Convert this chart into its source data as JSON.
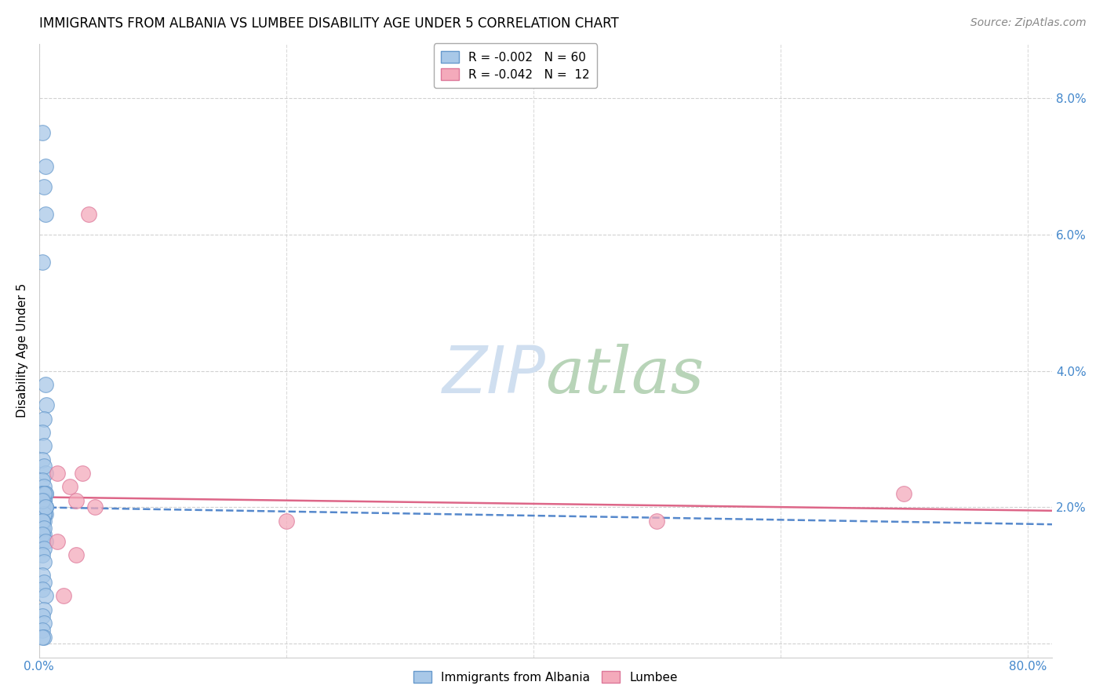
{
  "title": "IMMIGRANTS FROM ALBANIA VS LUMBEE DISABILITY AGE UNDER 5 CORRELATION CHART",
  "source": "Source: ZipAtlas.com",
  "ylabel": "Disability Age Under 5",
  "xlim": [
    0.0,
    0.82
  ],
  "ylim": [
    -0.002,
    0.088
  ],
  "yticks": [
    0.0,
    0.02,
    0.04,
    0.06,
    0.08
  ],
  "ytick_labels": [
    "",
    "2.0%",
    "4.0%",
    "6.0%",
    "8.0%"
  ],
  "xtick_left_val": 0.0,
  "xtick_right_val": 0.8,
  "xtick_left_label": "0.0%",
  "xtick_right_label": "80.0%",
  "legend_r1": "R = -0.002",
  "legend_n1": "N = 60",
  "legend_r2": "R = -0.042",
  "legend_n2": "N =  12",
  "albania_scatter_x": [
    0.003,
    0.005,
    0.004,
    0.005,
    0.003,
    0.005,
    0.006,
    0.004,
    0.003,
    0.004,
    0.003,
    0.005,
    0.004,
    0.003,
    0.004,
    0.003,
    0.004,
    0.005,
    0.004,
    0.003,
    0.004,
    0.003,
    0.005,
    0.004,
    0.003,
    0.004,
    0.003,
    0.005,
    0.004,
    0.003,
    0.004,
    0.003,
    0.005,
    0.004,
    0.003,
    0.004,
    0.003,
    0.005,
    0.004,
    0.003,
    0.004,
    0.003,
    0.005,
    0.003,
    0.004,
    0.003,
    0.005,
    0.004,
    0.003,
    0.004,
    0.003,
    0.004,
    0.003,
    0.005,
    0.004,
    0.003,
    0.004,
    0.003,
    0.004,
    0.003
  ],
  "albania_scatter_y": [
    0.075,
    0.07,
    0.067,
    0.063,
    0.056,
    0.038,
    0.035,
    0.033,
    0.031,
    0.029,
    0.027,
    0.025,
    0.026,
    0.024,
    0.023,
    0.022,
    0.021,
    0.02,
    0.019,
    0.022,
    0.021,
    0.02,
    0.019,
    0.018,
    0.017,
    0.016,
    0.015,
    0.022,
    0.021,
    0.02,
    0.019,
    0.018,
    0.022,
    0.021,
    0.02,
    0.019,
    0.018,
    0.02,
    0.019,
    0.018,
    0.022,
    0.021,
    0.02,
    0.018,
    0.017,
    0.016,
    0.015,
    0.014,
    0.013,
    0.012,
    0.01,
    0.009,
    0.008,
    0.007,
    0.005,
    0.004,
    0.003,
    0.002,
    0.001,
    0.001
  ],
  "lumbee_scatter_x": [
    0.04,
    0.015,
    0.025,
    0.03,
    0.035,
    0.045,
    0.5,
    0.7,
    0.2,
    0.015,
    0.02,
    0.03
  ],
  "lumbee_scatter_y": [
    0.063,
    0.025,
    0.023,
    0.021,
    0.025,
    0.02,
    0.018,
    0.022,
    0.018,
    0.015,
    0.007,
    0.013
  ],
  "albania_line_x": [
    0.0,
    0.82
  ],
  "albania_line_y": [
    0.02,
    0.0175
  ],
  "lumbee_line_x": [
    0.0,
    0.82
  ],
  "lumbee_line_y": [
    0.0215,
    0.0195
  ],
  "scatter_size": 200,
  "albania_color": "#A8C8E8",
  "albania_edge_color": "#6699CC",
  "lumbee_color": "#F4AABB",
  "lumbee_edge_color": "#DD7799",
  "albania_line_color": "#5588CC",
  "lumbee_line_color": "#DD6688",
  "background_color": "#ffffff",
  "grid_color": "#cccccc",
  "title_fontsize": 12,
  "label_fontsize": 11,
  "tick_fontsize": 11,
  "source_fontsize": 10,
  "watermark_color": "#d0dff0",
  "watermark_fontsize": 60
}
